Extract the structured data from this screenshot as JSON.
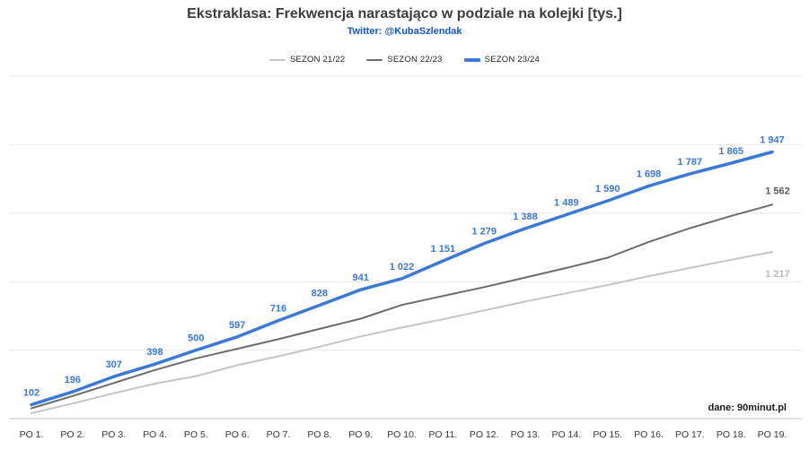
{
  "header": {
    "title": "Ekstraklasa: Frekwencja narastająco w podziale na kolejki [tys.]",
    "subtitle": "Twitter: @KubaSzlendak"
  },
  "footer": {
    "source": "dane: 90minut.pl"
  },
  "chart_data": {
    "type": "line",
    "title": "Ekstraklasa: Frekwencja narastająco w podziale na kolejki [tys.]",
    "subtitle": "Twitter: @KubaSzlendak",
    "unit": "tys.",
    "categories": [
      "PO 1.",
      "PO 2.",
      "PO 3.",
      "PO 4.",
      "PO 5.",
      "PO 6.",
      "PO 7.",
      "PO 8.",
      "PO 9.",
      "PO 10.",
      "PO 11.",
      "PO 12.",
      "PO 13.",
      "PO 14.",
      "PO 15.",
      "PO 16.",
      "PO 17.",
      "PO 18.",
      "PO 19."
    ],
    "ylim": [
      0,
      2500
    ],
    "grid_interval": 500,
    "grid": true,
    "legend_position": "top",
    "source": "dane: 90minut.pl",
    "series": [
      {
        "id": "sezon-21-22",
        "name": "SEZON 21/22",
        "color": "#c4c4c4",
        "label_color": "#b9b9b9",
        "stroke_width": 2,
        "values": [
          40,
          110,
          185,
          255,
          310,
          390,
          455,
          525,
          600,
          665,
          725,
          790,
          855,
          915,
          975,
          1040,
          1100,
          1160,
          1217
        ],
        "end_label": {
          "text": "1 217",
          "dx": 6,
          "dy": 28
        }
      },
      {
        "id": "sezon-22-23",
        "name": "SEZON 22/23",
        "color": "#6b6b6b",
        "label_color": "#5a5a5a",
        "stroke_width": 2,
        "values": [
          75,
          165,
          260,
          355,
          440,
          510,
          580,
          655,
          730,
          830,
          895,
          960,
          1030,
          1100,
          1175,
          1290,
          1390,
          1480,
          1562
        ],
        "end_label": {
          "text": "1 562",
          "dx": 6,
          "dy": -12
        }
      },
      {
        "id": "sezon-23-24",
        "name": "SEZON 23/24",
        "color": "#3b78d8",
        "label_color": "#3b78d8",
        "stroke_width": 3.5,
        "values": [
          102,
          196,
          307,
          398,
          500,
          597,
          716,
          828,
          941,
          1022,
          1151,
          1279,
          1388,
          1489,
          1590,
          1698,
          1787,
          1865,
          1947
        ],
        "point_labels": [
          "102",
          "196",
          "307",
          "398",
          "500",
          "597",
          "716",
          "828",
          "941",
          "1 022",
          "1 151",
          "1 279",
          "1 388",
          "1 489",
          "1 590",
          "1 698",
          "1 787",
          "1 865",
          "1 947"
        ]
      }
    ]
  }
}
